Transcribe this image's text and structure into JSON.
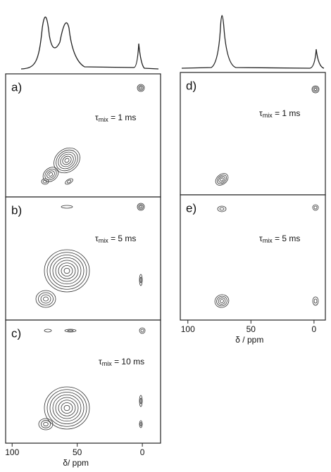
{
  "panels": [
    {
      "label": "a)",
      "tau": "τ",
      "sub": "mix",
      "text": " = 1 ms"
    },
    {
      "label": "b)",
      "tau": "τ",
      "sub": "mix",
      "text": " = 5 ms"
    },
    {
      "label": "c)",
      "tau": "τ",
      "sub": "mix",
      "text": " = 10 ms"
    },
    {
      "label": "d)",
      "tau": "τ",
      "sub": "mix",
      "text": " = 1 ms"
    },
    {
      "label": "e)",
      "tau": "τ",
      "sub": "mix",
      "text": " = 5 ms"
    }
  ],
  "left_axis": {
    "xlim": [
      105,
      -14
    ],
    "xticks": [
      100,
      50,
      0
    ],
    "label": "δ/ ppm"
  },
  "right_axis": {
    "xlim": [
      106,
      -9
    ],
    "xticks": [
      100,
      50,
      0
    ],
    "label": "δ / ppm"
  }
}
